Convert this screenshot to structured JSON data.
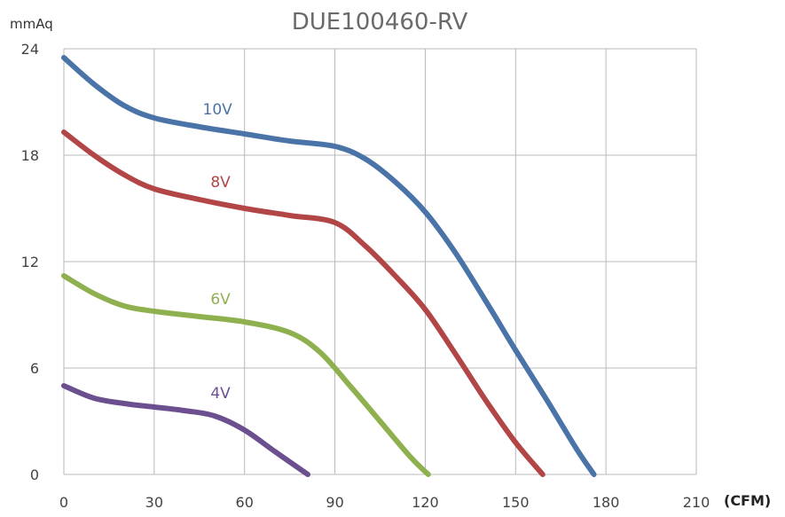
{
  "chart_data": {
    "type": "line",
    "title": "DUE100460-RV",
    "ylabel": "mmAq",
    "xlabel": "(CFM)",
    "xlim": [
      0,
      210
    ],
    "ylim": [
      0,
      24
    ],
    "x_ticks": [
      "0",
      "30",
      "60",
      "90",
      "120",
      "150",
      "180",
      "210"
    ],
    "y_ticks": [
      "0",
      "6",
      "12",
      "18",
      "24"
    ],
    "grid": true,
    "series": [
      {
        "name": "10V",
        "color": "#4a73a8",
        "x": [
          0,
          10,
          20,
          30,
          45,
          60,
          75,
          90,
          100,
          110,
          120,
          130,
          140,
          150,
          160,
          170,
          176
        ],
        "y": [
          23.5,
          22.0,
          20.8,
          20.1,
          19.6,
          19.2,
          18.8,
          18.5,
          17.8,
          16.5,
          14.8,
          12.5,
          9.8,
          7.0,
          4.3,
          1.5,
          0
        ]
      },
      {
        "name": "8V",
        "color": "#b24646",
        "x": [
          0,
          10,
          20,
          30,
          45,
          60,
          75,
          90,
          100,
          110,
          120,
          130,
          140,
          150,
          159
        ],
        "y": [
          19.3,
          18.0,
          16.9,
          16.1,
          15.5,
          15.0,
          14.6,
          14.2,
          12.9,
          11.2,
          9.3,
          6.8,
          4.2,
          1.8,
          0
        ]
      },
      {
        "name": "6V",
        "color": "#8fb04e",
        "x": [
          0,
          10,
          20,
          30,
          45,
          60,
          75,
          85,
          95,
          105,
          115,
          121
        ],
        "y": [
          11.2,
          10.2,
          9.5,
          9.2,
          8.9,
          8.6,
          8.0,
          6.9,
          5.0,
          3.0,
          1.0,
          0
        ]
      },
      {
        "name": "4V",
        "color": "#6b4f8f",
        "x": [
          0,
          10,
          20,
          30,
          40,
          50,
          60,
          70,
          81
        ],
        "y": [
          5.0,
          4.3,
          4.0,
          3.8,
          3.6,
          3.3,
          2.5,
          1.3,
          0
        ]
      }
    ],
    "series_labels": [
      {
        "name": "10V",
        "x": 51,
        "y": 20.3
      },
      {
        "name": "8V",
        "x": 52,
        "y": 16.2
      },
      {
        "name": "6V",
        "x": 52,
        "y": 9.6
      },
      {
        "name": "4V",
        "x": 52,
        "y": 4.3
      }
    ]
  }
}
